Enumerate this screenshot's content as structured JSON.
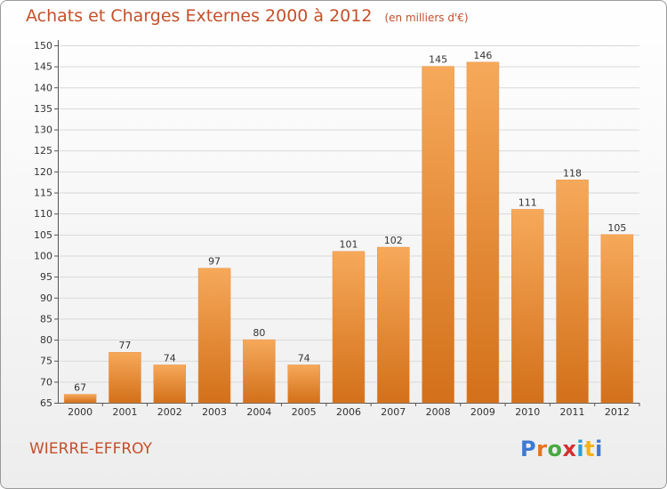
{
  "header": {
    "title": "Achats et Charges Externes 2000 à 2012",
    "subtitle": "(en milliers d'€)"
  },
  "footer": {
    "commune": "WIERRE-EFFROY",
    "logo_text": "Proxiti",
    "logo_colors": [
      "#3a7bd5",
      "#e8731a",
      "#49a942",
      "#d62f2f",
      "#2a9fd6",
      "#f2b21c",
      "#3a7bd5"
    ]
  },
  "colors": {
    "title": "#c4502a",
    "bar_light": "#f6a95a",
    "bar_dark": "#d3701a"
  },
  "chart_data": {
    "type": "bar",
    "title": "Achats et Charges Externes 2000 à 2012",
    "subtitle": "(en milliers d'€)",
    "xlabel": "",
    "ylabel": "",
    "categories": [
      "2000",
      "2001",
      "2002",
      "2003",
      "2004",
      "2005",
      "2006",
      "2007",
      "2008",
      "2009",
      "2010",
      "2011",
      "2012"
    ],
    "values": [
      67,
      77,
      74,
      97,
      80,
      74,
      101,
      102,
      145,
      146,
      111,
      118,
      105
    ],
    "ylim": [
      65,
      150
    ],
    "yticks": [
      65,
      70,
      75,
      80,
      85,
      90,
      95,
      100,
      105,
      110,
      115,
      120,
      125,
      130,
      135,
      140,
      145,
      150
    ],
    "grid": true,
    "legend": "none"
  }
}
